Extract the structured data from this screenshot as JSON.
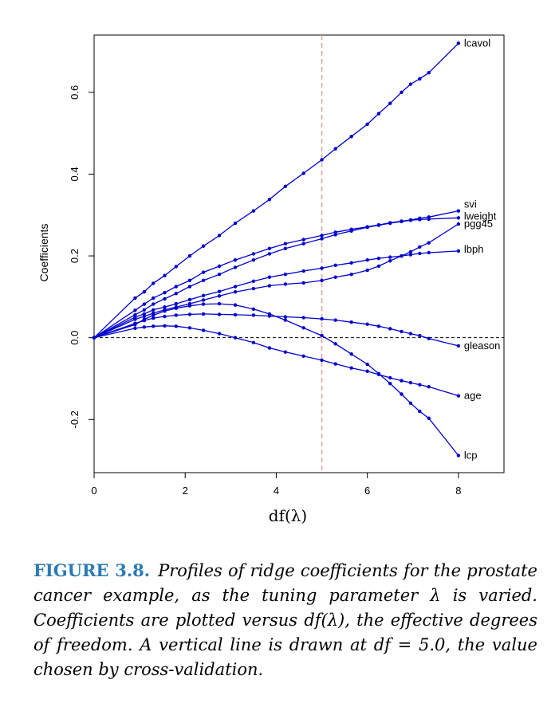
{
  "chart_data": {
    "type": "line",
    "xlabel": "df(λ)",
    "ylabel": "Coefficients",
    "xlim": [
      0,
      9
    ],
    "ylim": [
      -0.33,
      0.74
    ],
    "xticks": [
      0,
      2,
      4,
      6,
      8
    ],
    "yticks": [
      -0.2,
      0.0,
      0.2,
      0.4,
      0.6
    ],
    "xtick_labels": [
      "0",
      "2",
      "4",
      "6",
      "8"
    ],
    "ytick_labels": [
      "-0.2",
      "0.0",
      "0.2",
      "0.4",
      "0.6"
    ],
    "vline_x": 5.0,
    "hline_y": 0.0,
    "grid": false,
    "series_color": "#0000cc",
    "vline_color": "#f0a0a0",
    "series": [
      {
        "name": "lcavol",
        "points": [
          [
            0,
            0
          ],
          [
            0.9,
            0.097
          ],
          [
            1.1,
            0.112
          ],
          [
            1.3,
            0.133
          ],
          [
            1.55,
            0.152
          ],
          [
            1.8,
            0.174
          ],
          [
            2.1,
            0.2
          ],
          [
            2.4,
            0.224
          ],
          [
            2.75,
            0.25
          ],
          [
            3.1,
            0.28
          ],
          [
            3.5,
            0.31
          ],
          [
            3.85,
            0.338
          ],
          [
            4.2,
            0.37
          ],
          [
            4.6,
            0.402
          ],
          [
            5.0,
            0.435
          ],
          [
            5.3,
            0.462
          ],
          [
            5.65,
            0.492
          ],
          [
            6.0,
            0.522
          ],
          [
            6.25,
            0.548
          ],
          [
            6.5,
            0.573
          ],
          [
            6.75,
            0.6
          ],
          [
            6.95,
            0.62
          ],
          [
            7.15,
            0.633
          ],
          [
            7.35,
            0.648
          ],
          [
            8.0,
            0.72
          ]
        ]
      },
      {
        "name": "svi",
        "points": [
          [
            0,
            0
          ],
          [
            0.9,
            0.067
          ],
          [
            1.1,
            0.082
          ],
          [
            1.3,
            0.097
          ],
          [
            1.55,
            0.11
          ],
          [
            1.8,
            0.125
          ],
          [
            2.1,
            0.14
          ],
          [
            2.4,
            0.16
          ],
          [
            2.75,
            0.175
          ],
          [
            3.1,
            0.19
          ],
          [
            3.5,
            0.205
          ],
          [
            3.85,
            0.218
          ],
          [
            4.2,
            0.23
          ],
          [
            4.6,
            0.24
          ],
          [
            5.0,
            0.25
          ],
          [
            5.3,
            0.258
          ],
          [
            5.65,
            0.265
          ],
          [
            6.0,
            0.271
          ],
          [
            6.25,
            0.276
          ],
          [
            6.5,
            0.281
          ],
          [
            6.75,
            0.285
          ],
          [
            6.95,
            0.288
          ],
          [
            7.15,
            0.292
          ],
          [
            7.35,
            0.295
          ],
          [
            8.0,
            0.31
          ]
        ]
      },
      {
        "name": "lweight",
        "points": [
          [
            0,
            0
          ],
          [
            0.9,
            0.056
          ],
          [
            1.1,
            0.068
          ],
          [
            1.3,
            0.082
          ],
          [
            1.55,
            0.095
          ],
          [
            1.8,
            0.108
          ],
          [
            2.1,
            0.125
          ],
          [
            2.4,
            0.14
          ],
          [
            2.75,
            0.155
          ],
          [
            3.1,
            0.172
          ],
          [
            3.5,
            0.19
          ],
          [
            3.85,
            0.205
          ],
          [
            4.2,
            0.218
          ],
          [
            4.6,
            0.23
          ],
          [
            5.0,
            0.242
          ],
          [
            5.3,
            0.252
          ],
          [
            5.65,
            0.261
          ],
          [
            6.0,
            0.27
          ],
          [
            6.25,
            0.275
          ],
          [
            6.5,
            0.28
          ],
          [
            6.75,
            0.284
          ],
          [
            6.95,
            0.287
          ],
          [
            7.15,
            0.289
          ],
          [
            7.35,
            0.29
          ],
          [
            8.0,
            0.293
          ]
        ]
      },
      {
        "name": "pgg45",
        "points": [
          [
            0,
            0
          ],
          [
            0.9,
            0.045
          ],
          [
            1.1,
            0.052
          ],
          [
            1.3,
            0.06
          ],
          [
            1.55,
            0.068
          ],
          [
            1.8,
            0.075
          ],
          [
            2.1,
            0.083
          ],
          [
            2.4,
            0.092
          ],
          [
            2.75,
            0.102
          ],
          [
            3.1,
            0.112
          ],
          [
            3.5,
            0.12
          ],
          [
            3.85,
            0.127
          ],
          [
            4.2,
            0.131
          ],
          [
            4.6,
            0.134
          ],
          [
            5.0,
            0.14
          ],
          [
            5.3,
            0.148
          ],
          [
            5.65,
            0.155
          ],
          [
            6.0,
            0.165
          ],
          [
            6.25,
            0.175
          ],
          [
            6.5,
            0.188
          ],
          [
            6.75,
            0.2
          ],
          [
            6.95,
            0.21
          ],
          [
            7.15,
            0.222
          ],
          [
            7.35,
            0.232
          ],
          [
            8.0,
            0.278
          ]
        ]
      },
      {
        "name": "lbph",
        "points": [
          [
            0,
            0
          ],
          [
            0.9,
            0.05
          ],
          [
            1.1,
            0.058
          ],
          [
            1.3,
            0.068
          ],
          [
            1.55,
            0.075
          ],
          [
            1.8,
            0.083
          ],
          [
            2.1,
            0.093
          ],
          [
            2.4,
            0.103
          ],
          [
            2.75,
            0.113
          ],
          [
            3.1,
            0.125
          ],
          [
            3.5,
            0.138
          ],
          [
            3.85,
            0.148
          ],
          [
            4.2,
            0.155
          ],
          [
            4.6,
            0.163
          ],
          [
            5.0,
            0.17
          ],
          [
            5.3,
            0.177
          ],
          [
            5.65,
            0.183
          ],
          [
            6.0,
            0.19
          ],
          [
            6.25,
            0.194
          ],
          [
            6.5,
            0.197
          ],
          [
            6.75,
            0.2
          ],
          [
            6.95,
            0.203
          ],
          [
            7.15,
            0.206
          ],
          [
            7.35,
            0.208
          ],
          [
            8.0,
            0.212
          ]
        ]
      },
      {
        "name": "gleason",
        "points": [
          [
            0,
            0
          ],
          [
            0.9,
            0.035
          ],
          [
            1.1,
            0.042
          ],
          [
            1.3,
            0.048
          ],
          [
            1.55,
            0.052
          ],
          [
            1.8,
            0.055
          ],
          [
            2.1,
            0.057
          ],
          [
            2.4,
            0.058
          ],
          [
            2.75,
            0.057
          ],
          [
            3.1,
            0.056
          ],
          [
            3.5,
            0.055
          ],
          [
            3.85,
            0.053
          ],
          [
            4.2,
            0.051
          ],
          [
            4.6,
            0.049
          ],
          [
            5.0,
            0.046
          ],
          [
            5.3,
            0.043
          ],
          [
            5.65,
            0.038
          ],
          [
            6.0,
            0.033
          ],
          [
            6.25,
            0.028
          ],
          [
            6.5,
            0.022
          ],
          [
            6.75,
            0.015
          ],
          [
            6.95,
            0.01
          ],
          [
            7.15,
            0.005
          ],
          [
            7.35,
            -0.002
          ],
          [
            8.0,
            -0.02
          ]
        ]
      },
      {
        "name": "age",
        "points": [
          [
            0,
            0
          ],
          [
            0.9,
            0.023
          ],
          [
            1.1,
            0.026
          ],
          [
            1.3,
            0.028
          ],
          [
            1.55,
            0.029
          ],
          [
            1.8,
            0.028
          ],
          [
            2.1,
            0.024
          ],
          [
            2.4,
            0.018
          ],
          [
            2.75,
            0.01
          ],
          [
            3.1,
            0.0
          ],
          [
            3.5,
            -0.012
          ],
          [
            3.85,
            -0.025
          ],
          [
            4.2,
            -0.035
          ],
          [
            4.6,
            -0.045
          ],
          [
            5.0,
            -0.055
          ],
          [
            5.3,
            -0.064
          ],
          [
            5.65,
            -0.074
          ],
          [
            6.0,
            -0.082
          ],
          [
            6.25,
            -0.09
          ],
          [
            6.5,
            -0.098
          ],
          [
            6.75,
            -0.105
          ],
          [
            6.95,
            -0.11
          ],
          [
            7.15,
            -0.115
          ],
          [
            7.35,
            -0.12
          ],
          [
            8.0,
            -0.142
          ]
        ]
      },
      {
        "name": "lcp",
        "points": [
          [
            0,
            0
          ],
          [
            0.9,
            0.032
          ],
          [
            1.1,
            0.045
          ],
          [
            1.3,
            0.055
          ],
          [
            1.55,
            0.065
          ],
          [
            1.8,
            0.072
          ],
          [
            2.1,
            0.078
          ],
          [
            2.4,
            0.082
          ],
          [
            2.75,
            0.083
          ],
          [
            3.1,
            0.08
          ],
          [
            3.5,
            0.07
          ],
          [
            3.85,
            0.058
          ],
          [
            4.2,
            0.043
          ],
          [
            4.6,
            0.024
          ],
          [
            5.0,
            0.005
          ],
          [
            5.3,
            -0.015
          ],
          [
            5.65,
            -0.04
          ],
          [
            6.0,
            -0.065
          ],
          [
            6.25,
            -0.088
          ],
          [
            6.5,
            -0.112
          ],
          [
            6.75,
            -0.138
          ],
          [
            6.95,
            -0.16
          ],
          [
            7.15,
            -0.18
          ],
          [
            7.35,
            -0.197
          ],
          [
            8.0,
            -0.288
          ]
        ]
      }
    ]
  },
  "caption": {
    "label": "FIGURE 3.8.",
    "text": "Profiles of ridge coefficients for the prostate cancer example, as the tuning parameter λ is varied. Coefficients are plotted versus df(λ), the effective degrees of freedom. A vertical line is drawn at df = 5.0, the value chosen by cross-validation.",
    "label_color": "#2a7ab5"
  }
}
